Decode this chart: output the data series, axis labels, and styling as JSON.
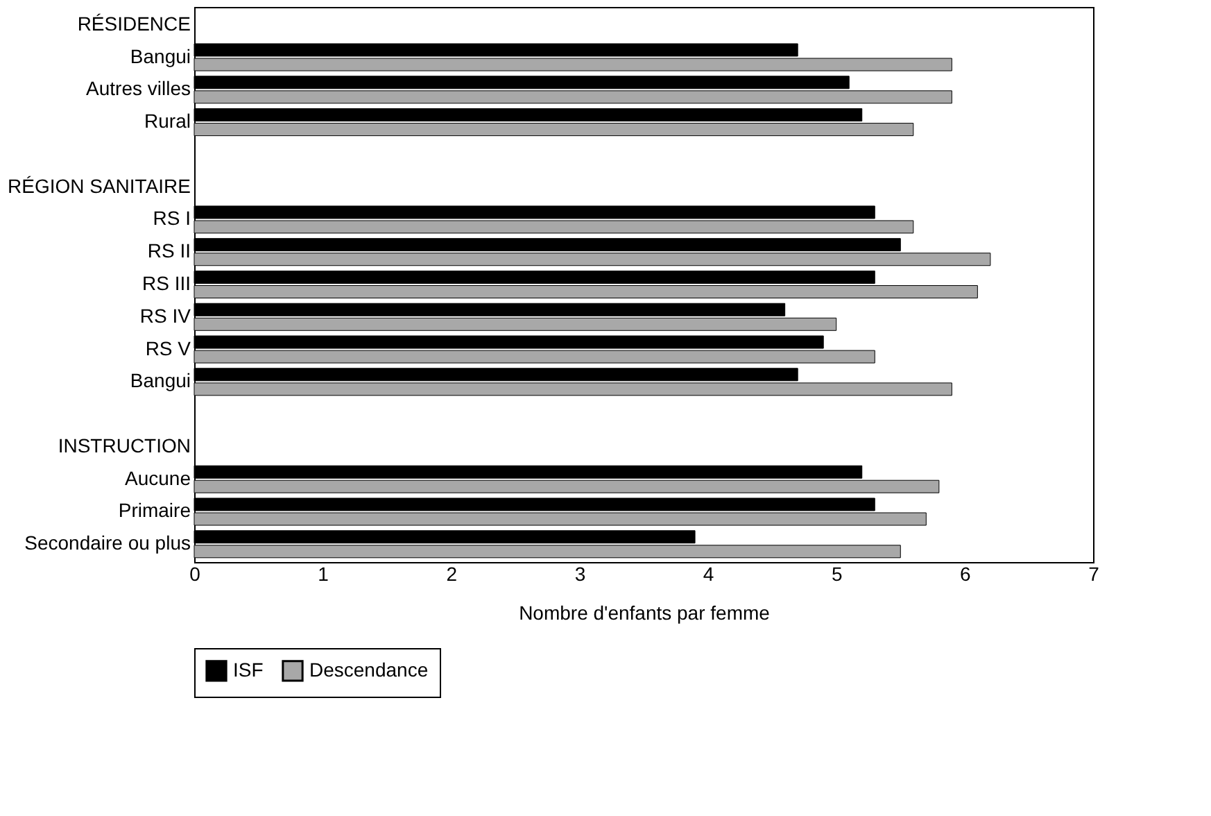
{
  "chart_data": {
    "type": "bar",
    "orientation": "horizontal",
    "xlabel": "Nombre d'enfants par femme",
    "categories": [
      "RÉSIDENCE",
      "Bangui",
      "Autres villes",
      "Rural",
      null,
      "RÉGION SANITAIRE",
      "RS I",
      "RS II",
      "RS III",
      "RS IV",
      "RS V",
      "Bangui",
      null,
      "INSTRUCTION",
      "Aucune",
      "Primaire",
      "Secondaire ou plus"
    ],
    "series": [
      {
        "name": "ISF",
        "color": "#000000",
        "values": [
          null,
          4.7,
          5.1,
          5.2,
          null,
          null,
          5.3,
          5.5,
          5.3,
          4.6,
          4.9,
          4.7,
          null,
          null,
          5.2,
          5.3,
          3.9
        ]
      },
      {
        "name": "Descendance",
        "color": "#a8a8a8",
        "values": [
          null,
          5.9,
          5.9,
          5.6,
          null,
          null,
          5.6,
          6.2,
          6.1,
          5.0,
          5.3,
          5.9,
          null,
          null,
          5.8,
          5.7,
          5.5
        ]
      }
    ],
    "xlim": [
      0,
      7
    ],
    "xticks": [
      0,
      1,
      2,
      3,
      4,
      5,
      6,
      7
    ],
    "grid": false,
    "legend": "bottom"
  }
}
